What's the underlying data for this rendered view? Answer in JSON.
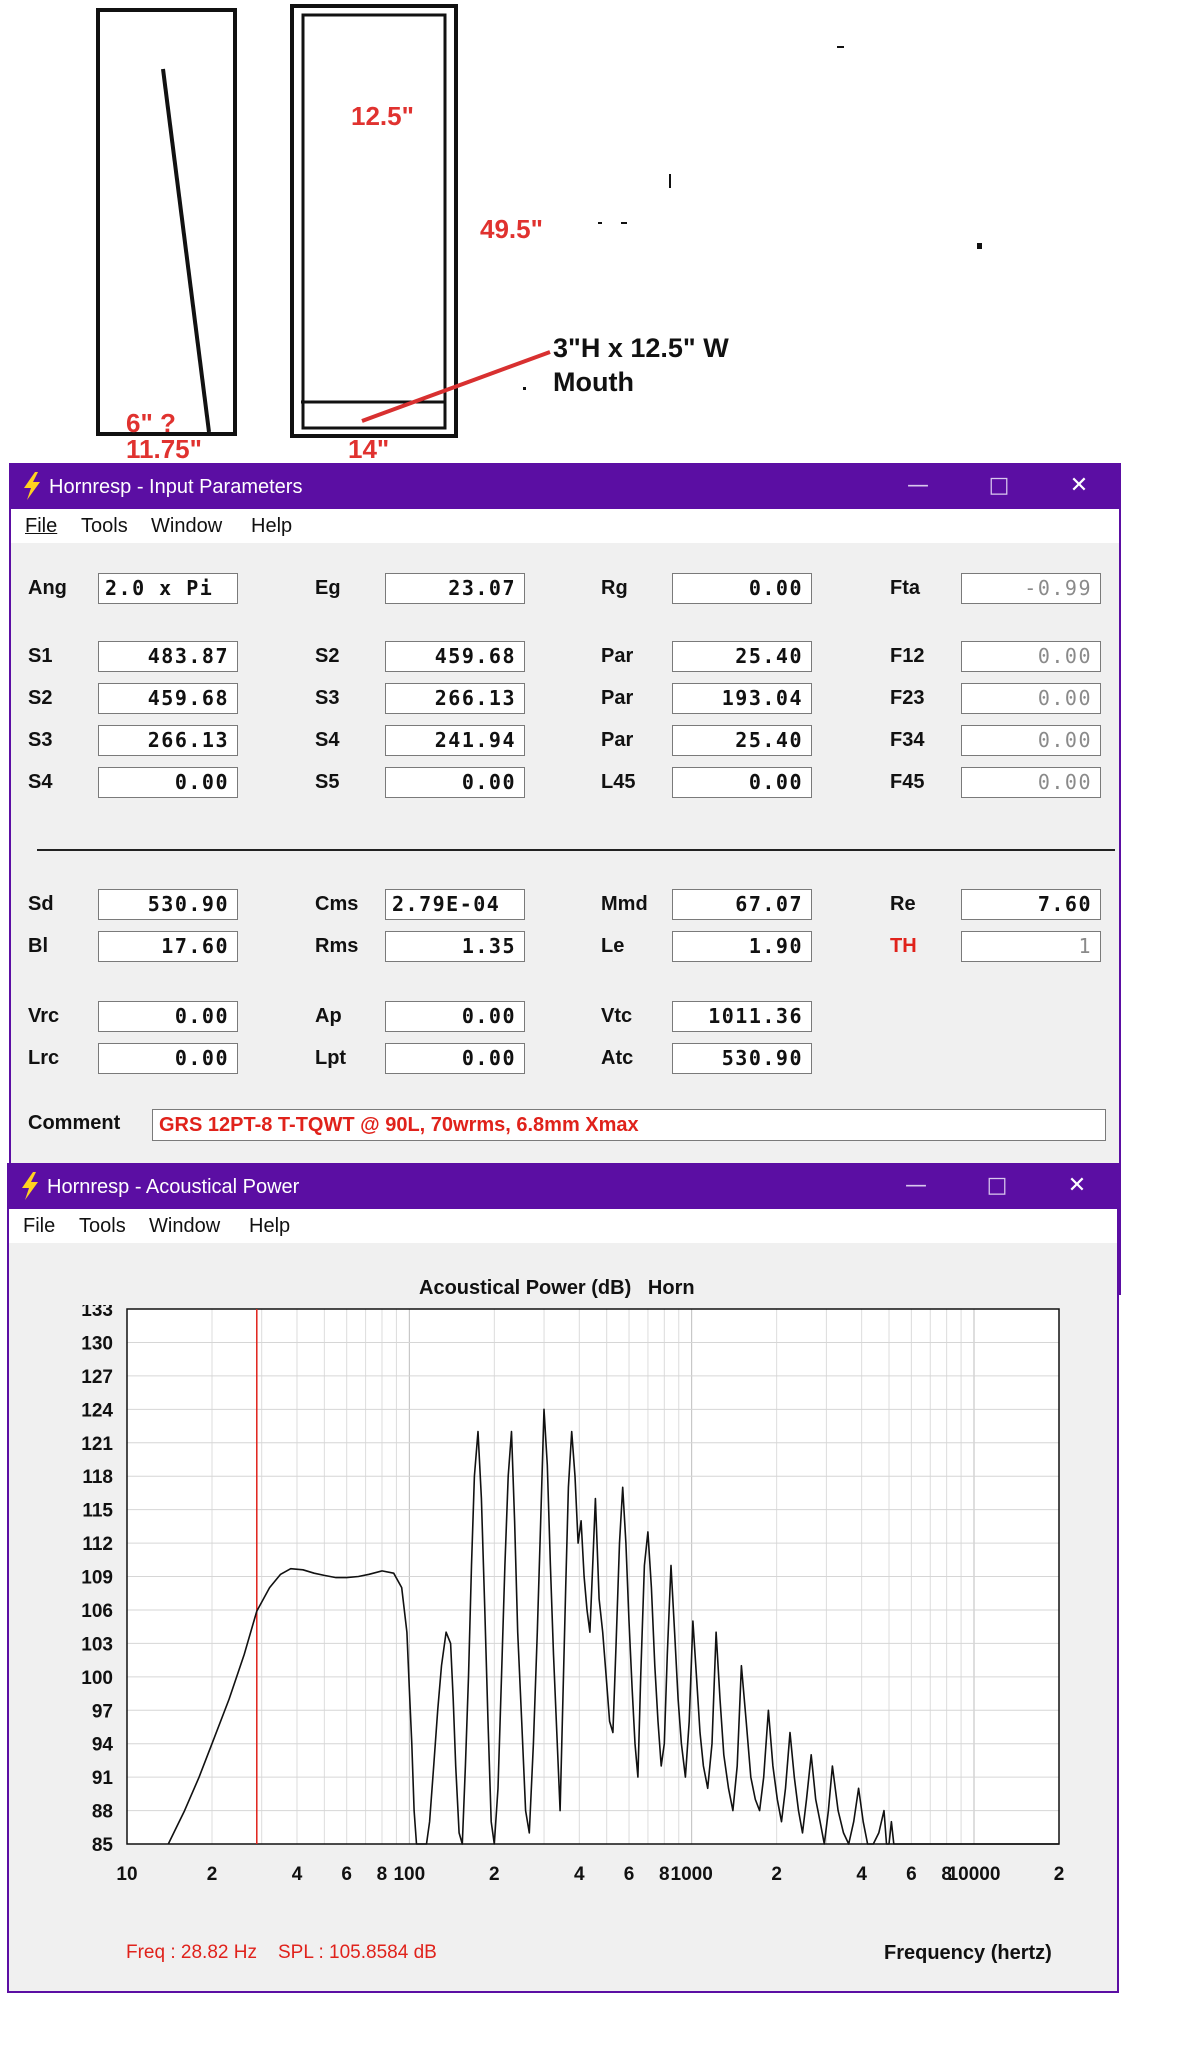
{
  "sketch": {
    "dim_top": "12.5\"",
    "dim_height": "49.5\"",
    "dim_mouth_note_line1": "3\"H x 12.5\" W",
    "dim_mouth_note_line2": "Mouth",
    "dim_left_small": "6\" ?",
    "dim_left_width": "11.75\"",
    "dim_right_width": "14\""
  },
  "input_window": {
    "title": "Hornresp - Input Parameters",
    "menu": [
      "File",
      "Tools",
      "Window",
      "Help"
    ],
    "rows": [
      [
        {
          "label": "Ang",
          "value": "2.0 x Pi"
        },
        {
          "label": "Eg",
          "value": "23.07"
        },
        {
          "label": "Rg",
          "value": "0.00"
        },
        {
          "label": "Fta",
          "value": "-0.99"
        }
      ],
      [
        {
          "label": "S1",
          "value": "483.87"
        },
        {
          "label": "S2",
          "value": "459.68"
        },
        {
          "label": "Par",
          "value": "25.40"
        },
        {
          "label": "F12",
          "value": "0.00"
        }
      ],
      [
        {
          "label": "S2",
          "value": "459.68"
        },
        {
          "label": "S3",
          "value": "266.13"
        },
        {
          "label": "Par",
          "value": "193.04"
        },
        {
          "label": "F23",
          "value": "0.00"
        }
      ],
      [
        {
          "label": "S3",
          "value": "266.13"
        },
        {
          "label": "S4",
          "value": "241.94"
        },
        {
          "label": "Par",
          "value": "25.40"
        },
        {
          "label": "F34",
          "value": "0.00"
        }
      ],
      [
        {
          "label": "S4",
          "value": "0.00"
        },
        {
          "label": "S5",
          "value": "0.00"
        },
        {
          "label": "L45",
          "value": "0.00"
        },
        {
          "label": "F45",
          "value": "0.00"
        }
      ],
      [
        {
          "label": "Sd",
          "value": "530.90"
        },
        {
          "label": "Cms",
          "value": "2.79E-04"
        },
        {
          "label": "Mmd",
          "value": "67.07"
        },
        {
          "label": "Re",
          "value": "7.60"
        }
      ],
      [
        {
          "label": "Bl",
          "value": "17.60"
        },
        {
          "label": "Rms",
          "value": "1.35"
        },
        {
          "label": "Le",
          "value": "1.90"
        },
        {
          "label": "TH",
          "value": "1"
        }
      ],
      [
        {
          "label": "Vrc",
          "value": "0.00"
        },
        {
          "label": "Ap",
          "value": "0.00"
        },
        {
          "label": "Vtc",
          "value": "1011.36"
        }
      ],
      [
        {
          "label": "Lrc",
          "value": "0.00"
        },
        {
          "label": "Lpt",
          "value": "0.00"
        },
        {
          "label": "Atc",
          "value": "530.90"
        }
      ]
    ],
    "comment_label": "Comment",
    "comment_value": "GRS 12PT-8 T-TQWT @ 90L, 70wrms, 6.8mm Xmax"
  },
  "power_window": {
    "title": "Hornresp - Acoustical Power",
    "menu": [
      "File",
      "Tools",
      "Window",
      "Help"
    ],
    "status_freq": "Freq : 28.82 Hz",
    "status_spl": "SPL : 105.8584 dB"
  },
  "chart_data": {
    "type": "line",
    "title": "Acoustical Power (dB)   Horn",
    "xlabel": "Frequency (hertz)",
    "ylabel": "",
    "x_scale": "log",
    "xlim": [
      10,
      20000
    ],
    "ylim": [
      85,
      133
    ],
    "yticks": [
      85,
      88,
      91,
      94,
      97,
      100,
      103,
      106,
      109,
      112,
      115,
      118,
      121,
      124,
      127,
      130,
      133
    ],
    "xtick_labels": [
      {
        "x": 10,
        "label": "10"
      },
      {
        "x": 20,
        "label": "2"
      },
      {
        "x": 40,
        "label": "4"
      },
      {
        "x": 60,
        "label": "6"
      },
      {
        "x": 80,
        "label": "8"
      },
      {
        "x": 100,
        "label": "100"
      },
      {
        "x": 200,
        "label": "2"
      },
      {
        "x": 400,
        "label": "4"
      },
      {
        "x": 600,
        "label": "6"
      },
      {
        "x": 800,
        "label": "8"
      },
      {
        "x": 1000,
        "label": "1000"
      },
      {
        "x": 2000,
        "label": "2"
      },
      {
        "x": 4000,
        "label": "4"
      },
      {
        "x": 6000,
        "label": "6"
      },
      {
        "x": 8000,
        "label": "8"
      },
      {
        "x": 10000,
        "label": "10000"
      },
      {
        "x": 20000,
        "label": "2"
      }
    ],
    "grid": true,
    "cursor_freq": 28.82,
    "cursor_spl": 105.8584,
    "series": [
      {
        "x": [
          14,
          16,
          18,
          20,
          23,
          26,
          28.82,
          32,
          35,
          38,
          42,
          46,
          50,
          55,
          60,
          66,
          72,
          80,
          88,
          94,
          98,
          100,
          102,
          104,
          106,
          108,
          110,
          112,
          115,
          118,
          122,
          126,
          130,
          135,
          140,
          143,
          146,
          150,
          154,
          158,
          162,
          166,
          170,
          175,
          180,
          185,
          190,
          195,
          200,
          206,
          212,
          218,
          224,
          230,
          236,
          242,
          250,
          258,
          266,
          275,
          284,
          292,
          300,
          308,
          316,
          324,
          333,
          342,
          350,
          358,
          366,
          376,
          386,
          396,
          406,
          416,
          426,
          436,
          446,
          456,
          470,
          484,
          498,
          512,
          526,
          540,
          555,
          570,
          585,
          600,
          615,
          630,
          645,
          660,
          680,
          700,
          720,
          740,
          760,
          780,
          800,
          820,
          845,
          870,
          895,
          920,
          950,
          980,
          1010,
          1040,
          1070,
          1100,
          1140,
          1180,
          1220,
          1260,
          1300,
          1350,
          1400,
          1450,
          1500,
          1560,
          1620,
          1680,
          1740,
          1800,
          1870,
          1940,
          2010,
          2080,
          2150,
          2230,
          2310,
          2390,
          2470,
          2550,
          2650,
          2750,
          2850,
          2950,
          3050,
          3150,
          3300,
          3450,
          3600,
          3750,
          3900,
          4050,
          4200,
          4400,
          4600,
          4800,
          4900,
          5000,
          5100,
          5200,
          5500,
          6000,
          7000,
          8000,
          10000,
          15000,
          20000
        ],
        "y": [
          85,
          88,
          91,
          94,
          98,
          102,
          105.9,
          108,
          109.2,
          109.7,
          109.6,
          109.3,
          109.1,
          108.9,
          108.9,
          109.0,
          109.2,
          109.5,
          109.3,
          108,
          104,
          99,
          94,
          88,
          85,
          85,
          85,
          85,
          85,
          87,
          92,
          97,
          101,
          104,
          103,
          98,
          92,
          86,
          85,
          92,
          100,
          110,
          118,
          122,
          116,
          106,
          96,
          87,
          85,
          90,
          100,
          110,
          118,
          122,
          114,
          104,
          96,
          88,
          86,
          94,
          104,
          114,
          124,
          119,
          110,
          102,
          95,
          88,
          98,
          108,
          117,
          122,
          118,
          112,
          114,
          109,
          106,
          104,
          110,
          116,
          107,
          104,
          100,
          96,
          95,
          103,
          112,
          117,
          112,
          105,
          99,
          94,
          91,
          100,
          110,
          113,
          108,
          101,
          96,
          92,
          94,
          102,
          110,
          104,
          98,
          94,
          91,
          96,
          105,
          100,
          95,
          92,
          90,
          94,
          104,
          98,
          93,
          90,
          88,
          92,
          101,
          96,
          91,
          89,
          88,
          91,
          97,
          92,
          89,
          87,
          90,
          95,
          91,
          88,
          86,
          89,
          93,
          89,
          87,
          85,
          88,
          92,
          88,
          86,
          85,
          87,
          90,
          87,
          85,
          85,
          86,
          88,
          85,
          85,
          87,
          85,
          85,
          85,
          85,
          85,
          85,
          85,
          85
        ]
      }
    ]
  }
}
